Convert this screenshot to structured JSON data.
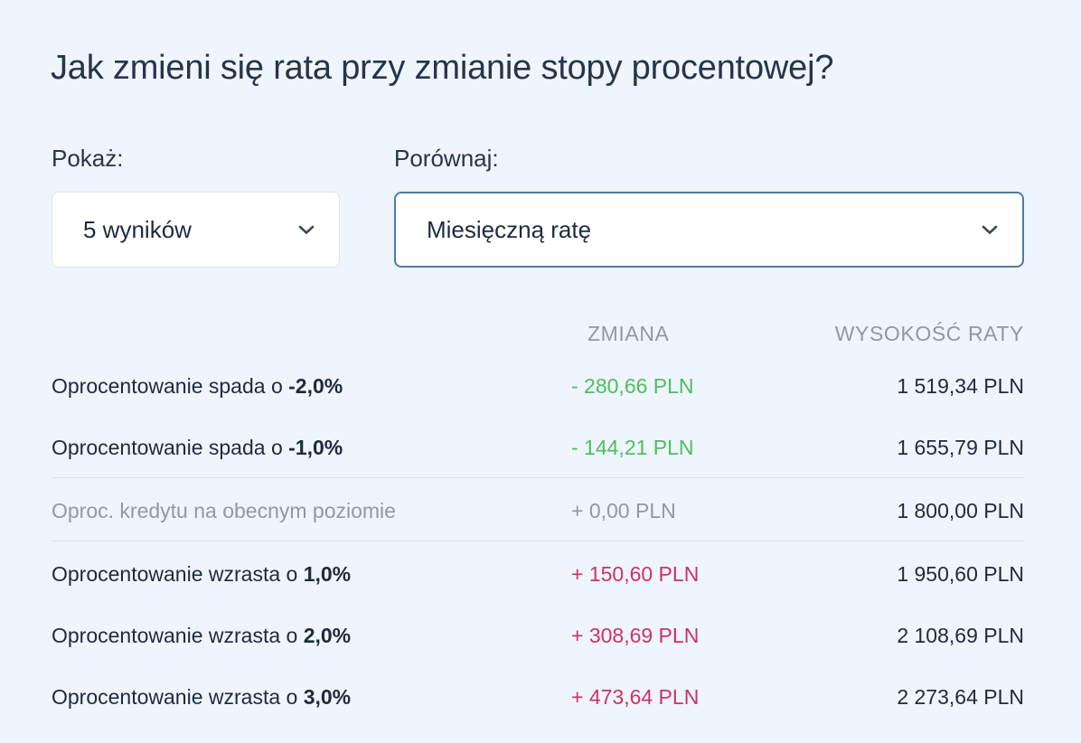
{
  "title": "Jak zmieni się rata przy zmianie stopy procentowej?",
  "controls": {
    "show_label": "Pokaż:",
    "show_value": "5 wyników",
    "compare_label": "Porównaj:",
    "compare_value": "Miesięczną ratę"
  },
  "table": {
    "headers": {
      "change": "ZMIANA",
      "rate": "WYSOKOŚĆ RATY"
    },
    "rows": [
      {
        "label": "Oprocentowanie spada o ",
        "pct": "-2,0%",
        "change": "- 280,66 PLN",
        "rate": "1 519,34 PLN",
        "kind": "negative"
      },
      {
        "label": "Oprocentowanie spada o ",
        "pct": "-1,0%",
        "change": "- 144,21 PLN",
        "rate": "1 655,79 PLN",
        "kind": "negative"
      },
      {
        "label": "Oproc. kredytu na obecnym poziomie",
        "pct": "",
        "change": "+ 0,00 PLN",
        "rate": "1 800,00 PLN",
        "kind": "zero"
      },
      {
        "label": "Oprocentowanie wzrasta o ",
        "pct": "1,0%",
        "change": "+ 150,60 PLN",
        "rate": "1 950,60 PLN",
        "kind": "positive"
      },
      {
        "label": "Oprocentowanie wzrasta o ",
        "pct": "2,0%",
        "change": "+ 308,69 PLN",
        "rate": "2 108,69 PLN",
        "kind": "positive"
      },
      {
        "label": "Oprocentowanie wzrasta o ",
        "pct": "3,0%",
        "change": "+ 473,64 PLN",
        "rate": "2 273,64 PLN",
        "kind": "positive"
      }
    ]
  },
  "icons": {
    "dropdown": "chevron-down-icon"
  },
  "colors": {
    "background": "#eff5fc",
    "negative": "#4fbd61",
    "positive": "#cf3167",
    "neutral": "#8f99a6",
    "select_focus_border": "#4d7baa"
  }
}
